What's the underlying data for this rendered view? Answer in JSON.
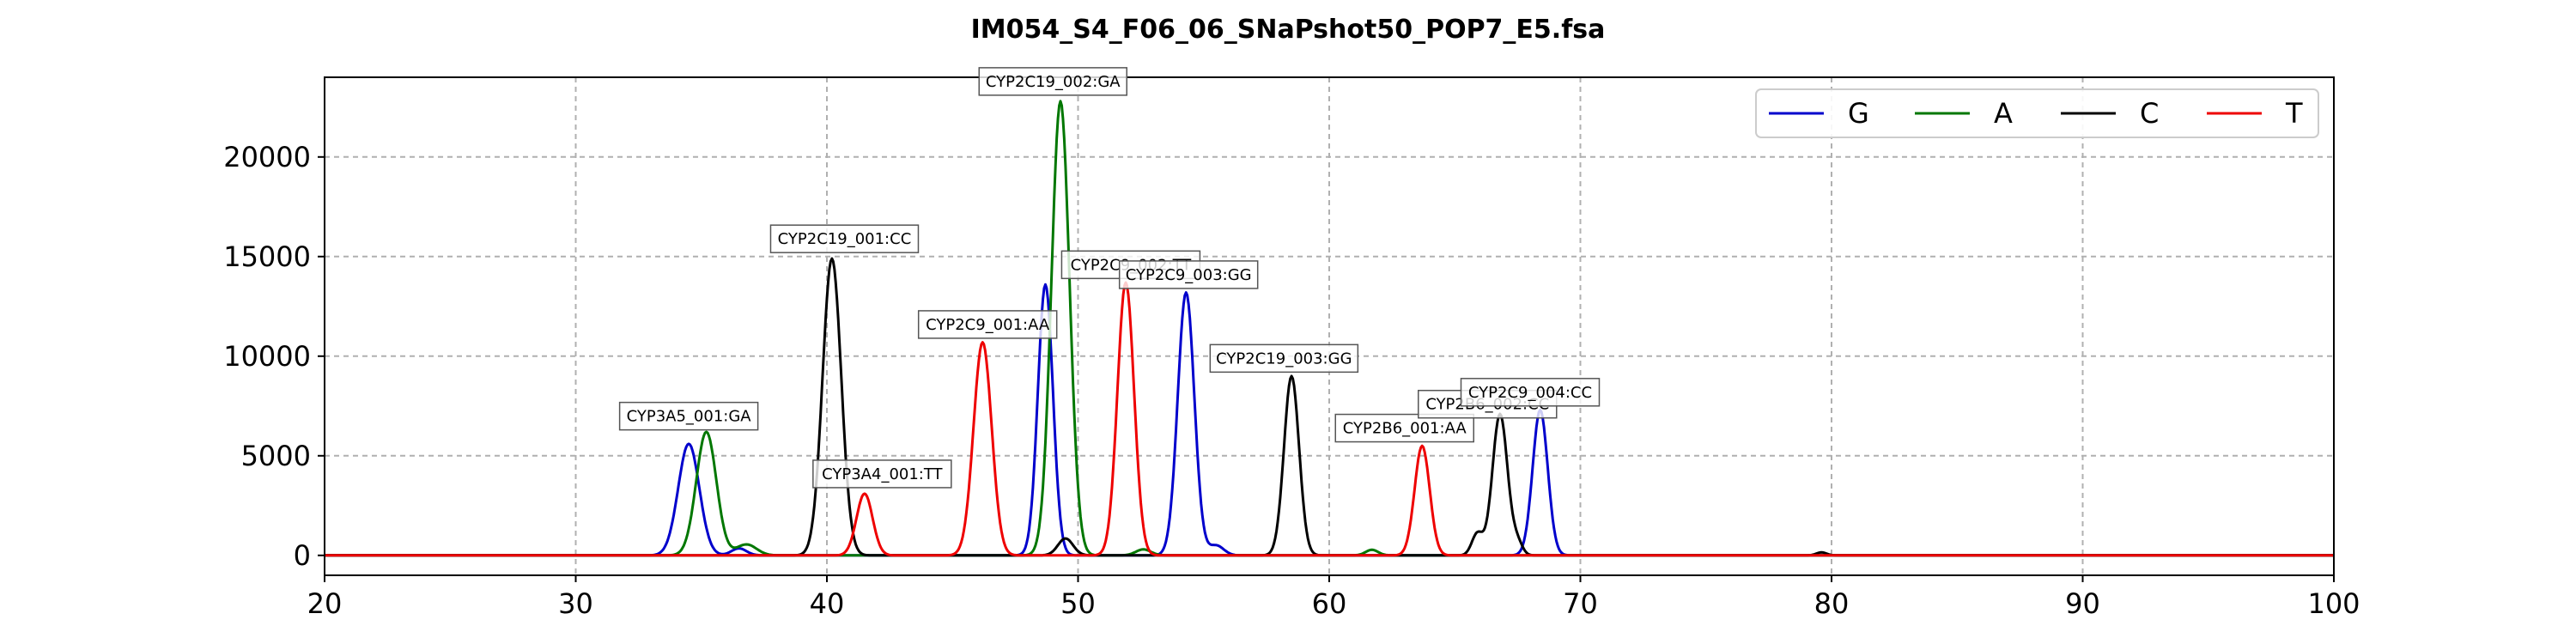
{
  "chart_data": {
    "type": "line",
    "title": "IM054_S4_F06_06_SNaPshot50_POP7_E5.fsa",
    "xlabel": "",
    "ylabel": "",
    "xlim": [
      20,
      100
    ],
    "ylim": [
      -1000,
      24000
    ],
    "xticks": [
      20,
      30,
      40,
      50,
      60,
      70,
      80,
      90,
      100
    ],
    "yticks": [
      0,
      5000,
      10000,
      15000,
      20000
    ],
    "grid": true,
    "legend_position": "top-right",
    "series": [
      {
        "name": "G",
        "color": "#0000cc",
        "peaks": [
          {
            "x": 34.5,
            "y": 5600,
            "w": 0.42
          },
          {
            "x": 36.5,
            "y": 350,
            "w": 0.3
          },
          {
            "x": 48.7,
            "y": 13600,
            "w": 0.3
          },
          {
            "x": 54.3,
            "y": 13200,
            "w": 0.33
          },
          {
            "x": 55.5,
            "y": 500,
            "w": 0.3
          },
          {
            "x": 68.4,
            "y": 7300,
            "w": 0.3
          }
        ]
      },
      {
        "name": "A",
        "color": "#007700",
        "peaks": [
          {
            "x": 35.2,
            "y": 6200,
            "w": 0.4
          },
          {
            "x": 36.8,
            "y": 550,
            "w": 0.4
          },
          {
            "x": 49.3,
            "y": 22800,
            "w": 0.36
          },
          {
            "x": 52.6,
            "y": 300,
            "w": 0.3
          },
          {
            "x": 61.7,
            "y": 280,
            "w": 0.25
          }
        ]
      },
      {
        "name": "C",
        "color": "#000000",
        "peaks": [
          {
            "x": 40.2,
            "y": 14900,
            "w": 0.37
          },
          {
            "x": 49.5,
            "y": 850,
            "w": 0.3
          },
          {
            "x": 58.5,
            "y": 9000,
            "w": 0.3
          },
          {
            "x": 65.9,
            "y": 1100,
            "w": 0.22
          },
          {
            "x": 66.8,
            "y": 7100,
            "w": 0.3
          },
          {
            "x": 67.5,
            "y": 600,
            "w": 0.2
          },
          {
            "x": 79.6,
            "y": 150,
            "w": 0.2
          }
        ]
      },
      {
        "name": "T",
        "color": "#ee0000",
        "peaks": [
          {
            "x": 41.5,
            "y": 3100,
            "w": 0.32
          },
          {
            "x": 46.2,
            "y": 10700,
            "w": 0.36
          },
          {
            "x": 51.9,
            "y": 13700,
            "w": 0.33
          },
          {
            "x": 63.7,
            "y": 5500,
            "w": 0.3
          }
        ]
      }
    ],
    "annotations": [
      {
        "text": "CYP3A5_001:GA",
        "x": 34.5,
        "y": 6300
      },
      {
        "text": "CYP3A4_001:TT",
        "x": 42.2,
        "y": 3400
      },
      {
        "text": "CYP2C19_001:CC",
        "x": 40.7,
        "y": 15200
      },
      {
        "text": "CYP2C9_001:AA",
        "x": 46.4,
        "y": 10900
      },
      {
        "text": "CYP2C19_002:GA",
        "x": 49.0,
        "y": 23100
      },
      {
        "text": "CYP2C9_002:TT",
        "x": 52.1,
        "y": 13900
      },
      {
        "text": "CYP2C9_003:GG",
        "x": 54.4,
        "y": 13400
      },
      {
        "text": "CYP2C19_003:GG",
        "x": 58.2,
        "y": 9200
      },
      {
        "text": "CYP2B6_001:AA",
        "x": 63.0,
        "y": 5700
      },
      {
        "text": "CYP2B6_002:CC",
        "x": 66.3,
        "y": 6900
      },
      {
        "text": "CYP2C9_004:CC",
        "x": 68.0,
        "y": 7500
      }
    ]
  }
}
